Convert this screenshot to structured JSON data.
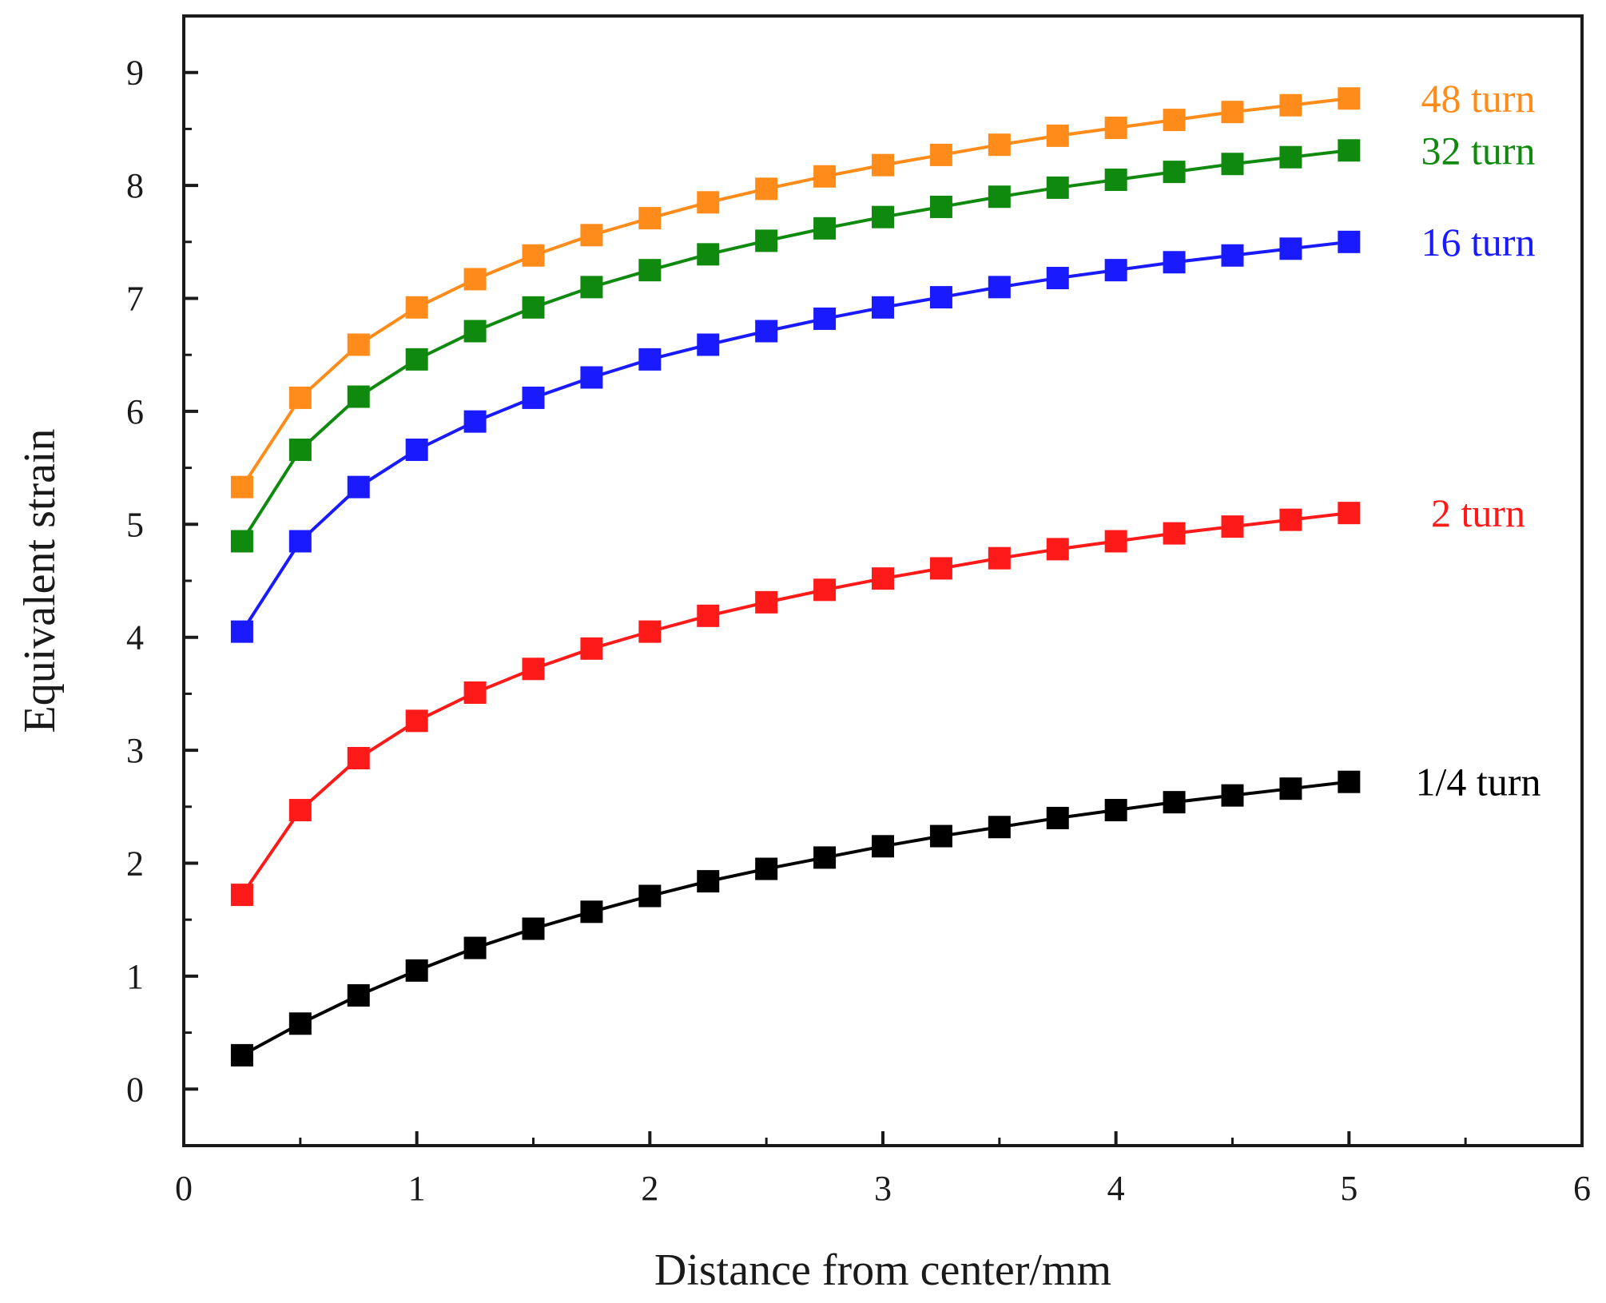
{
  "chart_data": {
    "type": "line",
    "title": "",
    "xlabel": "Distance from center/mm",
    "ylabel": "Equivalent strain",
    "xlim": [
      0,
      6
    ],
    "ylim": [
      -0.5,
      9.5
    ],
    "xticks": [
      0,
      1,
      2,
      3,
      4,
      5,
      6
    ],
    "yticks": [
      0,
      1,
      2,
      3,
      4,
      5,
      6,
      7,
      8,
      9
    ],
    "x": [
      0.25,
      0.5,
      0.75,
      1.0,
      1.25,
      1.5,
      1.75,
      2.0,
      2.25,
      2.5,
      2.75,
      3.0,
      3.25,
      3.5,
      3.75,
      4.0,
      4.25,
      4.5,
      4.75,
      5.0
    ],
    "series": [
      {
        "name": "1/4 turn",
        "label": "1/4 turn",
        "color": "#000000",
        "values": [
          0.3,
          0.58,
          0.83,
          1.05,
          1.25,
          1.42,
          1.57,
          1.71,
          1.84,
          1.95,
          2.05,
          2.15,
          2.24,
          2.32,
          2.4,
          2.47,
          2.54,
          2.6,
          2.66,
          2.72
        ]
      },
      {
        "name": "2 turn",
        "label": "2 turn",
        "color": "#ff1a1a",
        "values": [
          1.72,
          2.47,
          2.93,
          3.26,
          3.51,
          3.72,
          3.9,
          4.05,
          4.19,
          4.31,
          4.42,
          4.52,
          4.61,
          4.7,
          4.78,
          4.85,
          4.92,
          4.98,
          5.04,
          5.1
        ]
      },
      {
        "name": "16 turn",
        "label": "16 turn",
        "color": "#1a1aff",
        "values": [
          4.05,
          4.85,
          5.33,
          5.66,
          5.91,
          6.12,
          6.3,
          6.46,
          6.59,
          6.71,
          6.82,
          6.92,
          7.01,
          7.1,
          7.18,
          7.25,
          7.32,
          7.38,
          7.44,
          7.5
        ]
      },
      {
        "name": "32 turn",
        "label": "32 turn",
        "color": "#0f8a0f",
        "values": [
          4.85,
          5.66,
          6.13,
          6.46,
          6.71,
          6.92,
          7.1,
          7.25,
          7.39,
          7.51,
          7.62,
          7.72,
          7.81,
          7.9,
          7.98,
          8.05,
          8.12,
          8.19,
          8.25,
          8.31
        ]
      },
      {
        "name": "48 turn",
        "label": "48 turn",
        "color": "#ff8c1a",
        "values": [
          5.33,
          6.12,
          6.59,
          6.92,
          7.17,
          7.38,
          7.56,
          7.71,
          7.85,
          7.97,
          8.08,
          8.18,
          8.27,
          8.36,
          8.44,
          8.51,
          8.58,
          8.65,
          8.71,
          8.77
        ]
      }
    ]
  }
}
